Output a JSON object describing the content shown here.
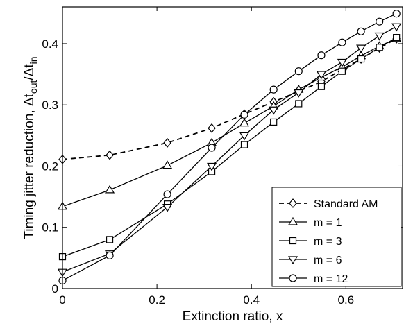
{
  "chart_data": {
    "type": "line",
    "xlabel": "Extinction ratio, x",
    "ylabel": {
      "main": "Timing jitter reduction, Δt",
      "sub1": "out",
      "mid": "/Δt",
      "sub2": "in"
    },
    "xlim": [
      0,
      0.72
    ],
    "ylim": [
      0,
      0.46
    ],
    "xticks": [
      0,
      0.2,
      0.4,
      0.6
    ],
    "xtick_labels": [
      "0",
      "0.2",
      "0.4",
      "0.6"
    ],
    "yticks": [
      0,
      0.1,
      0.2,
      0.3,
      0.4
    ],
    "ytick_labels": [
      "0",
      "0.1",
      "0.2",
      "0.3",
      "0.4"
    ],
    "grid": false,
    "legend_position": "bottom-right",
    "x": [
      0,
      0.1,
      0.222,
      0.316,
      0.385,
      0.447,
      0.5,
      0.548,
      0.592,
      0.632,
      0.671,
      0.707
    ],
    "series": [
      {
        "name": "Standard AM",
        "marker": "diamond",
        "dashed": true,
        "values": [
          0.211,
          0.218,
          0.238,
          0.262,
          0.285,
          0.305,
          0.322,
          0.338,
          0.358,
          0.375,
          0.393,
          0.408
        ]
      },
      {
        "name": "m = 1",
        "marker": "triangle-up",
        "dashed": false,
        "values": [
          0.134,
          0.161,
          0.201,
          0.238,
          0.27,
          0.298,
          0.325,
          0.345,
          0.362,
          0.38,
          0.396,
          0.408
        ]
      },
      {
        "name": "m = 3",
        "marker": "square",
        "dashed": false,
        "values": [
          0.052,
          0.08,
          0.138,
          0.191,
          0.235,
          0.272,
          0.302,
          0.33,
          0.355,
          0.375,
          0.394,
          0.41
        ]
      },
      {
        "name": "m = 6",
        "marker": "triangle-down",
        "dashed": false,
        "values": [
          0.027,
          0.057,
          0.133,
          0.2,
          0.25,
          0.292,
          0.32,
          0.35,
          0.37,
          0.393,
          0.413,
          0.428
        ]
      },
      {
        "name": "m = 12",
        "marker": "circle",
        "dashed": false,
        "values": [
          0.013,
          0.054,
          0.154,
          0.23,
          0.284,
          0.325,
          0.355,
          0.381,
          0.402,
          0.42,
          0.436,
          0.449
        ]
      }
    ]
  }
}
